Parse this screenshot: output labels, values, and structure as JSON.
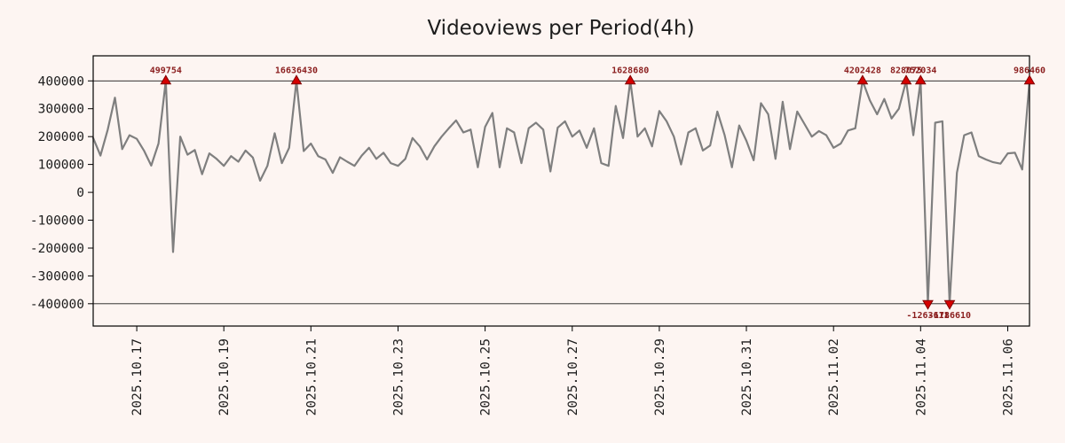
{
  "title": "Videoviews per Period(4h)",
  "chart_data": {
    "type": "line",
    "title": "Videoviews per Period(4h)",
    "series_name": "videoviews",
    "x_interval": "4h",
    "x_tick_labels": [
      "2025.10.17",
      "2025.10.19",
      "2025.10.21",
      "2025.10.23",
      "2025.10.25",
      "2025.10.27",
      "2025.10.29",
      "2025.10.31",
      "2025.11.02",
      "2025.11.04",
      "2025.11.06"
    ],
    "x_tick_indices": [
      6,
      18,
      30,
      42,
      54,
      66,
      78,
      90,
      102,
      114,
      126
    ],
    "y_ticks": [
      400000,
      300000,
      200000,
      100000,
      0,
      -100000,
      -200000,
      -300000,
      -400000
    ],
    "y_tick_labels": [
      "400000",
      "300000",
      "200000",
      "100000",
      "0",
      "-100000",
      "-200000",
      "-300000",
      "-400000"
    ],
    "ylim": [
      -480000,
      490000
    ],
    "clip_value": 400000,
    "grid": false,
    "legend": null,
    "line_color": "#7f7f7f",
    "marker_color": "#d40000",
    "marker_edge_color": "#7f0000",
    "annotation_color": "#8b1f1f",
    "background": "#fdf5f2",
    "values": [
      195000,
      132000,
      225000,
      340000,
      155000,
      205000,
      192000,
      150000,
      96000,
      175000,
      499754,
      -214000,
      200000,
      135000,
      152000,
      65000,
      140000,
      120000,
      95000,
      130000,
      110000,
      150000,
      125000,
      42000,
      95000,
      212000,
      105000,
      160000,
      16636430,
      148000,
      175000,
      130000,
      118000,
      70000,
      126000,
      110000,
      95000,
      132000,
      160000,
      120000,
      142000,
      105000,
      95000,
      120000,
      195000,
      165000,
      118000,
      165000,
      200000,
      230000,
      258000,
      215000,
      225000,
      90000,
      235000,
      285000,
      90000,
      230000,
      215000,
      105000,
      230000,
      250000,
      225000,
      75000,
      232000,
      255000,
      200000,
      222000,
      160000,
      230000,
      105000,
      95000,
      310000,
      195000,
      1628680,
      200000,
      230000,
      165000,
      292000,
      255000,
      200000,
      100000,
      215000,
      230000,
      150000,
      168000,
      290000,
      205000,
      90000,
      240000,
      185000,
      115000,
      320000,
      280000,
      120000,
      325000,
      155000,
      290000,
      245000,
      200000,
      220000,
      205000,
      160000,
      175000,
      222000,
      230000,
      4202428,
      330000,
      280000,
      335000,
      265000,
      300000,
      828075,
      205000,
      752034,
      -1263611,
      250000,
      255000,
      -1786610,
      70000,
      205000,
      215000,
      130000,
      118000,
      108000,
      103000,
      140000,
      142000,
      82000,
      986460
    ],
    "annotations": [
      {
        "index": 10,
        "label": "499754",
        "value": 499754,
        "position": "top"
      },
      {
        "index": 28,
        "label": "16636430",
        "value": 16636430,
        "position": "top"
      },
      {
        "index": 74,
        "label": "1628680",
        "value": 1628680,
        "position": "top"
      },
      {
        "index": 106,
        "label": "4202428",
        "value": 4202428,
        "position": "top"
      },
      {
        "index": 112,
        "label": "828075",
        "value": 828075,
        "position": "top"
      },
      {
        "index": 114,
        "label": "752034",
        "value": 752034,
        "position": "top"
      },
      {
        "index": 129,
        "label": "986460",
        "value": 986460,
        "position": "top"
      },
      {
        "index": 115,
        "label": "-1263611",
        "value": -1263611,
        "position": "bottom"
      },
      {
        "index": 118,
        "label": "-1786610",
        "value": -1786610,
        "position": "bottom"
      }
    ]
  }
}
